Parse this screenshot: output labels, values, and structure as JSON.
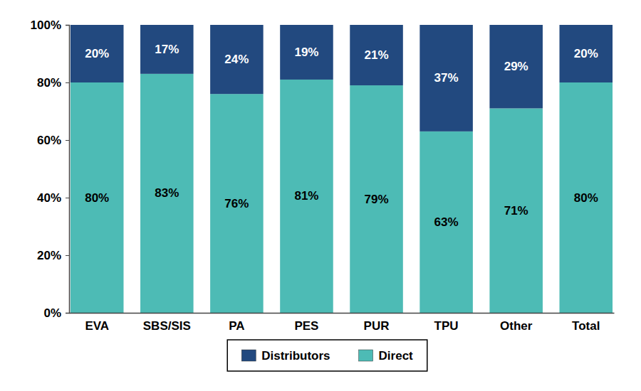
{
  "chart_data": {
    "type": "bar",
    "stacked": true,
    "data_labels": true,
    "legend": "bottom",
    "categories": [
      "EVA",
      "SBS/SIS",
      "PA",
      "PES",
      "PUR",
      "TPU",
      "Other",
      "Total"
    ],
    "series": [
      {
        "name": "Distributors",
        "color": "#22497f",
        "values": [
          20,
          17,
          24,
          19,
          21,
          37,
          29,
          20
        ],
        "value_labels": [
          "20%",
          "17%",
          "24%",
          "19%",
          "21%",
          "37%",
          "29%",
          "20%"
        ]
      },
      {
        "name": "Direct",
        "color": "#4dbbb5",
        "values": [
          80,
          83,
          76,
          81,
          79,
          63,
          71,
          80
        ],
        "value_labels": [
          "80%",
          "83%",
          "76%",
          "81%",
          "79%",
          "63%",
          "71%",
          "80%"
        ]
      }
    ],
    "ylim": [
      0,
      100
    ],
    "yticks": [
      {
        "value": 0,
        "label": "0%"
      },
      {
        "value": 20,
        "label": "20%"
      },
      {
        "value": 40,
        "label": "40%"
      },
      {
        "value": 60,
        "label": "60%"
      },
      {
        "value": 80,
        "label": "80%"
      },
      {
        "value": 100,
        "label": "100%"
      }
    ]
  }
}
